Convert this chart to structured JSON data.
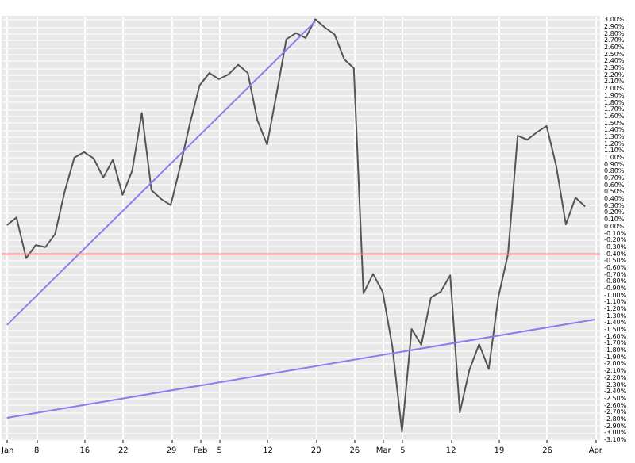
{
  "chart_data": {
    "type": "line",
    "categories": [
      "Jan",
      null,
      null,
      "8",
      null,
      null,
      null,
      null,
      "16",
      null,
      null,
      null,
      "22",
      null,
      null,
      null,
      null,
      "29",
      null,
      null,
      "Feb",
      null,
      "5",
      null,
      null,
      null,
      null,
      "12",
      null,
      null,
      null,
      null,
      "20",
      null,
      null,
      null,
      "26",
      null,
      null,
      "Mar",
      null,
      "5",
      null,
      null,
      null,
      null,
      "12",
      null,
      null,
      null,
      null,
      "19",
      null,
      null,
      null,
      null,
      "26",
      null,
      null,
      null,
      null,
      "Apr"
    ],
    "series": [
      {
        "color": "#555555",
        "values": [
          0.01,
          0.12,
          -0.47,
          -0.28,
          -0.31,
          -0.12,
          0.5,
          0.99,
          1.07,
          0.98,
          0.7,
          0.96,
          0.45,
          0.8,
          1.64,
          0.52,
          0.39,
          0.3,
          0.87,
          1.49,
          2.04,
          2.22,
          2.13,
          2.2,
          2.34,
          2.22,
          1.53,
          1.18,
          1.93,
          2.71,
          2.8,
          2.73,
          3.0,
          2.88,
          2.78,
          2.42,
          2.29,
          -0.98,
          -0.7,
          -0.96,
          -1.76,
          -2.99,
          -1.5,
          -1.73,
          -1.04,
          -0.96,
          -0.72,
          -2.71,
          -2.09,
          -1.72,
          -2.08,
          -1.03,
          -0.41,
          1.31,
          1.25,
          1.36,
          1.45,
          0.87,
          0.02,
          0.41,
          0.28,
          null
        ]
      },
      {
        "type": "line",
        "color": "#8c7cf0",
        "x": [
          "Jan",
          "20"
        ],
        "values": [
          -1.44,
          2.97
        ]
      },
      {
        "type": "line",
        "color": "#8c7cf0",
        "x": [
          "Jan",
          "Apr"
        ],
        "values": [
          -2.79,
          -1.36
        ]
      }
    ],
    "ref_lines": [
      {
        "axis": "y",
        "value": -0.41,
        "color": "#ff8080"
      }
    ],
    "ylim": [
      -3.1,
      3.05
    ],
    "yticks": [
      {
        "value": -3.1,
        "label": "-3.10%"
      },
      {
        "value": -3.0,
        "label": "-3.00%"
      },
      {
        "value": -2.9,
        "label": "-2.90%"
      },
      {
        "value": -2.8,
        "label": "-2.80%"
      },
      {
        "value": -2.7,
        "label": "-2.70%"
      },
      {
        "value": -2.6,
        "label": "-2.60%"
      },
      {
        "value": -2.5,
        "label": "-2.50%"
      },
      {
        "value": -2.4,
        "label": "-2.40%"
      },
      {
        "value": -2.3,
        "label": "-2.30%"
      },
      {
        "value": -2.2,
        "label": "-2.20%"
      },
      {
        "value": -2.1,
        "label": "-2.10%"
      },
      {
        "value": -2.0,
        "label": "-2.00%"
      },
      {
        "value": -1.9,
        "label": "-1.90%"
      },
      {
        "value": -1.8,
        "label": "-1.80%"
      },
      {
        "value": -1.7,
        "label": "-1.70%"
      },
      {
        "value": -1.6,
        "label": "-1.60%"
      },
      {
        "value": -1.5,
        "label": "-1.50%"
      },
      {
        "value": -1.4,
        "label": "-1.40%"
      },
      {
        "value": -1.3,
        "label": "-1.30%"
      },
      {
        "value": -1.2,
        "label": "-1.20%"
      },
      {
        "value": -1.1,
        "label": "-1.10%"
      },
      {
        "value": -1.0,
        "label": "-1.00%"
      },
      {
        "value": -0.9,
        "label": "-0.90%"
      },
      {
        "value": -0.8,
        "label": "-0.80%"
      },
      {
        "value": -0.7,
        "label": "-0.70%"
      },
      {
        "value": -0.6,
        "label": "-0.60%"
      },
      {
        "value": -0.5,
        "label": "-0.50%"
      },
      {
        "value": -0.4,
        "label": "-0.40%"
      },
      {
        "value": -0.3,
        "label": "-0.30%"
      },
      {
        "value": -0.2,
        "label": "-0.20%"
      },
      {
        "value": -0.1,
        "label": "-0.10%"
      },
      {
        "value": 0,
        "label": "0.00%"
      },
      {
        "value": 0.1,
        "label": "0.10%"
      },
      {
        "value": 0.2,
        "label": "0.20%"
      },
      {
        "value": 0.3,
        "label": "0.30%"
      },
      {
        "value": 0.4,
        "label": "0.40%"
      },
      {
        "value": 0.5,
        "label": "0.50%"
      },
      {
        "value": 0.6,
        "label": "0.60%"
      },
      {
        "value": 0.7,
        "label": "0.70%"
      },
      {
        "value": 0.8,
        "label": "0.80%"
      },
      {
        "value": 0.9,
        "label": "0.90%"
      },
      {
        "value": 1.0,
        "label": "1.00%"
      },
      {
        "value": 1.1,
        "label": "1.10%"
      },
      {
        "value": 1.2,
        "label": "1.20%"
      },
      {
        "value": 1.3,
        "label": "1.30%"
      },
      {
        "value": 1.4,
        "label": "1.40%"
      },
      {
        "value": 1.5,
        "label": "1.50%"
      },
      {
        "value": 1.6,
        "label": "1.60%"
      },
      {
        "value": 1.7,
        "label": "1.70%"
      },
      {
        "value": 1.8,
        "label": "1.80%"
      },
      {
        "value": 1.9,
        "label": "1.90%"
      },
      {
        "value": 2.0,
        "label": "2.00%"
      },
      {
        "value": 2.1,
        "label": "2.10%"
      },
      {
        "value": 2.2,
        "label": "2.20%"
      },
      {
        "value": 2.3,
        "label": "2.30%"
      },
      {
        "value": 2.4,
        "label": "2.40%"
      },
      {
        "value": 2.5,
        "label": "2.50%"
      },
      {
        "value": 2.6,
        "label": "2.60%"
      },
      {
        "value": 2.7,
        "label": "2.70%"
      },
      {
        "value": 2.8,
        "label": "2.80%"
      },
      {
        "value": 2.9,
        "label": "2.90%"
      },
      {
        "value": 3.0,
        "label": "3.00%"
      }
    ],
    "grid": true
  }
}
